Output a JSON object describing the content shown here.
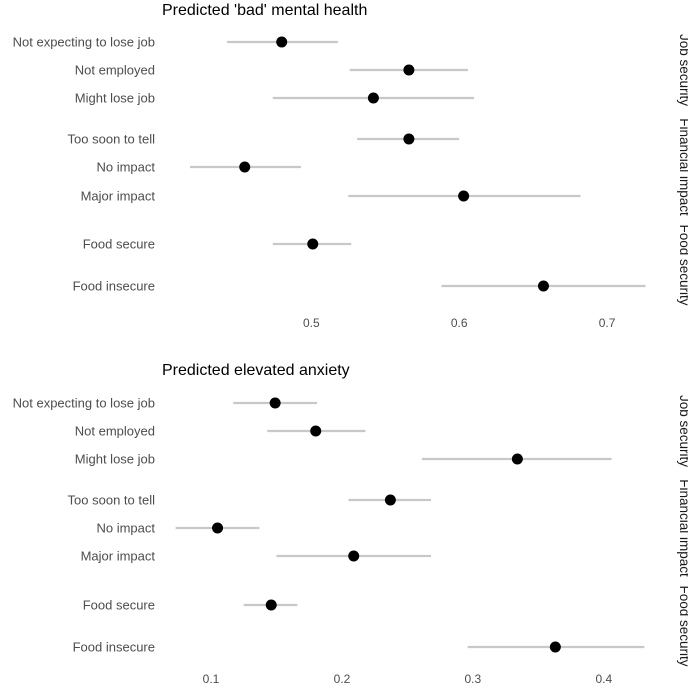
{
  "chart_data": [
    {
      "type": "scatter",
      "title": "Predicted 'bad' mental health",
      "xlim": [
        0.395,
        0.727
      ],
      "xticks": [
        0.5,
        0.6,
        0.7
      ],
      "xtick_labels": [
        "0.5",
        "0.6",
        "0.7"
      ],
      "groups": [
        {
          "label": "Job security",
          "rows": [
            {
              "name": "Not expecting to lose job",
              "estimate": 0.48,
              "ci": [
                0.443,
                0.518
              ]
            },
            {
              "name": "Not employed",
              "estimate": 0.566,
              "ci": [
                0.526,
                0.606
              ]
            },
            {
              "name": "Might lose job",
              "estimate": 0.542,
              "ci": [
                0.474,
                0.61
              ]
            }
          ]
        },
        {
          "label": "Financial impact",
          "rows": [
            {
              "name": "Too soon to tell",
              "estimate": 0.566,
              "ci": [
                0.531,
                0.6
              ]
            },
            {
              "name": "No impact",
              "estimate": 0.455,
              "ci": [
                0.418,
                0.493
              ]
            },
            {
              "name": "Major impact",
              "estimate": 0.603,
              "ci": [
                0.525,
                0.682
              ]
            }
          ]
        },
        {
          "label": "Food security",
          "rows": [
            {
              "name": "Food secure",
              "estimate": 0.501,
              "ci": [
                0.474,
                0.527
              ]
            },
            {
              "name": "Food insecure",
              "estimate": 0.657,
              "ci": [
                0.588,
                0.726
              ]
            }
          ]
        }
      ]
    },
    {
      "type": "scatter",
      "title": "Predicted elevated anxiety",
      "xlim": [
        0.058,
        0.433
      ],
      "xticks": [
        0.1,
        0.2,
        0.3,
        0.4
      ],
      "xtick_labels": [
        "0.1",
        "0.2",
        "0.3",
        "0.4"
      ],
      "groups": [
        {
          "label": "Job security",
          "rows": [
            {
              "name": "Not expecting to lose job",
              "estimate": 0.149,
              "ci": [
                0.117,
                0.181
              ]
            },
            {
              "name": "Not employed",
              "estimate": 0.18,
              "ci": [
                0.143,
                0.218
              ]
            },
            {
              "name": "Might lose job",
              "estimate": 0.334,
              "ci": [
                0.261,
                0.406
              ]
            }
          ]
        },
        {
          "label": "Financial impact",
          "rows": [
            {
              "name": "Too soon to tell",
              "estimate": 0.237,
              "ci": [
                0.205,
                0.268
              ]
            },
            {
              "name": "No impact",
              "estimate": 0.105,
              "ci": [
                0.073,
                0.137
              ]
            },
            {
              "name": "Major impact",
              "estimate": 0.209,
              "ci": [
                0.15,
                0.268
              ]
            }
          ]
        },
        {
          "label": "Food security",
          "rows": [
            {
              "name": "Food secure",
              "estimate": 0.146,
              "ci": [
                0.125,
                0.166
              ]
            },
            {
              "name": "Food insecure",
              "estimate": 0.363,
              "ci": [
                0.296,
                0.431
              ]
            }
          ]
        }
      ]
    }
  ],
  "style": {
    "point_color": "#000000",
    "ci_color": "#c8c8c8",
    "label_color": "#4d4d4d",
    "title_color": "#000000",
    "background": "#ffffff",
    "grid": false
  }
}
